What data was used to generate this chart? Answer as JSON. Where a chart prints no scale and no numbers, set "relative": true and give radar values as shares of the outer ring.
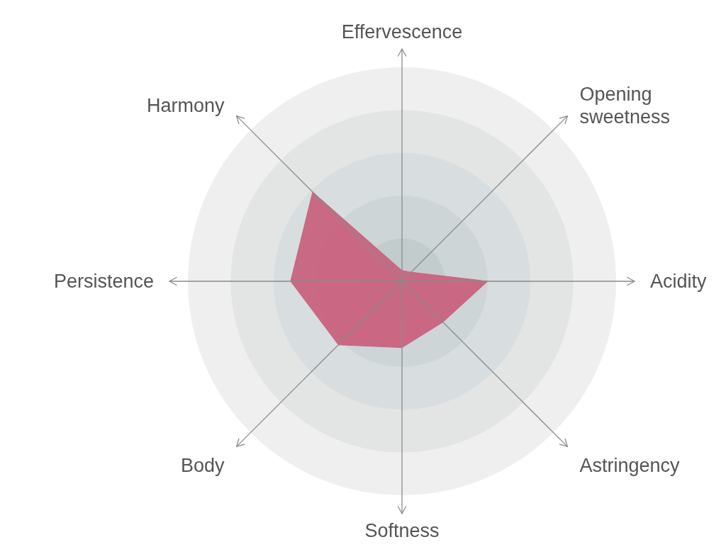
{
  "chart_data": {
    "type": "radar",
    "relative": true,
    "grid": true,
    "categories": [
      "Effervescence",
      "Opening sweetness",
      "Acidity",
      "Astringency",
      "Softness",
      "Body",
      "Persistence",
      "Harmony"
    ],
    "series": [
      {
        "color": "#c9627e",
        "values": [
          0.05,
          0.06,
          0.4,
          0.27,
          0.31,
          0.42,
          0.52,
          0.59
        ]
      }
    ]
  }
}
